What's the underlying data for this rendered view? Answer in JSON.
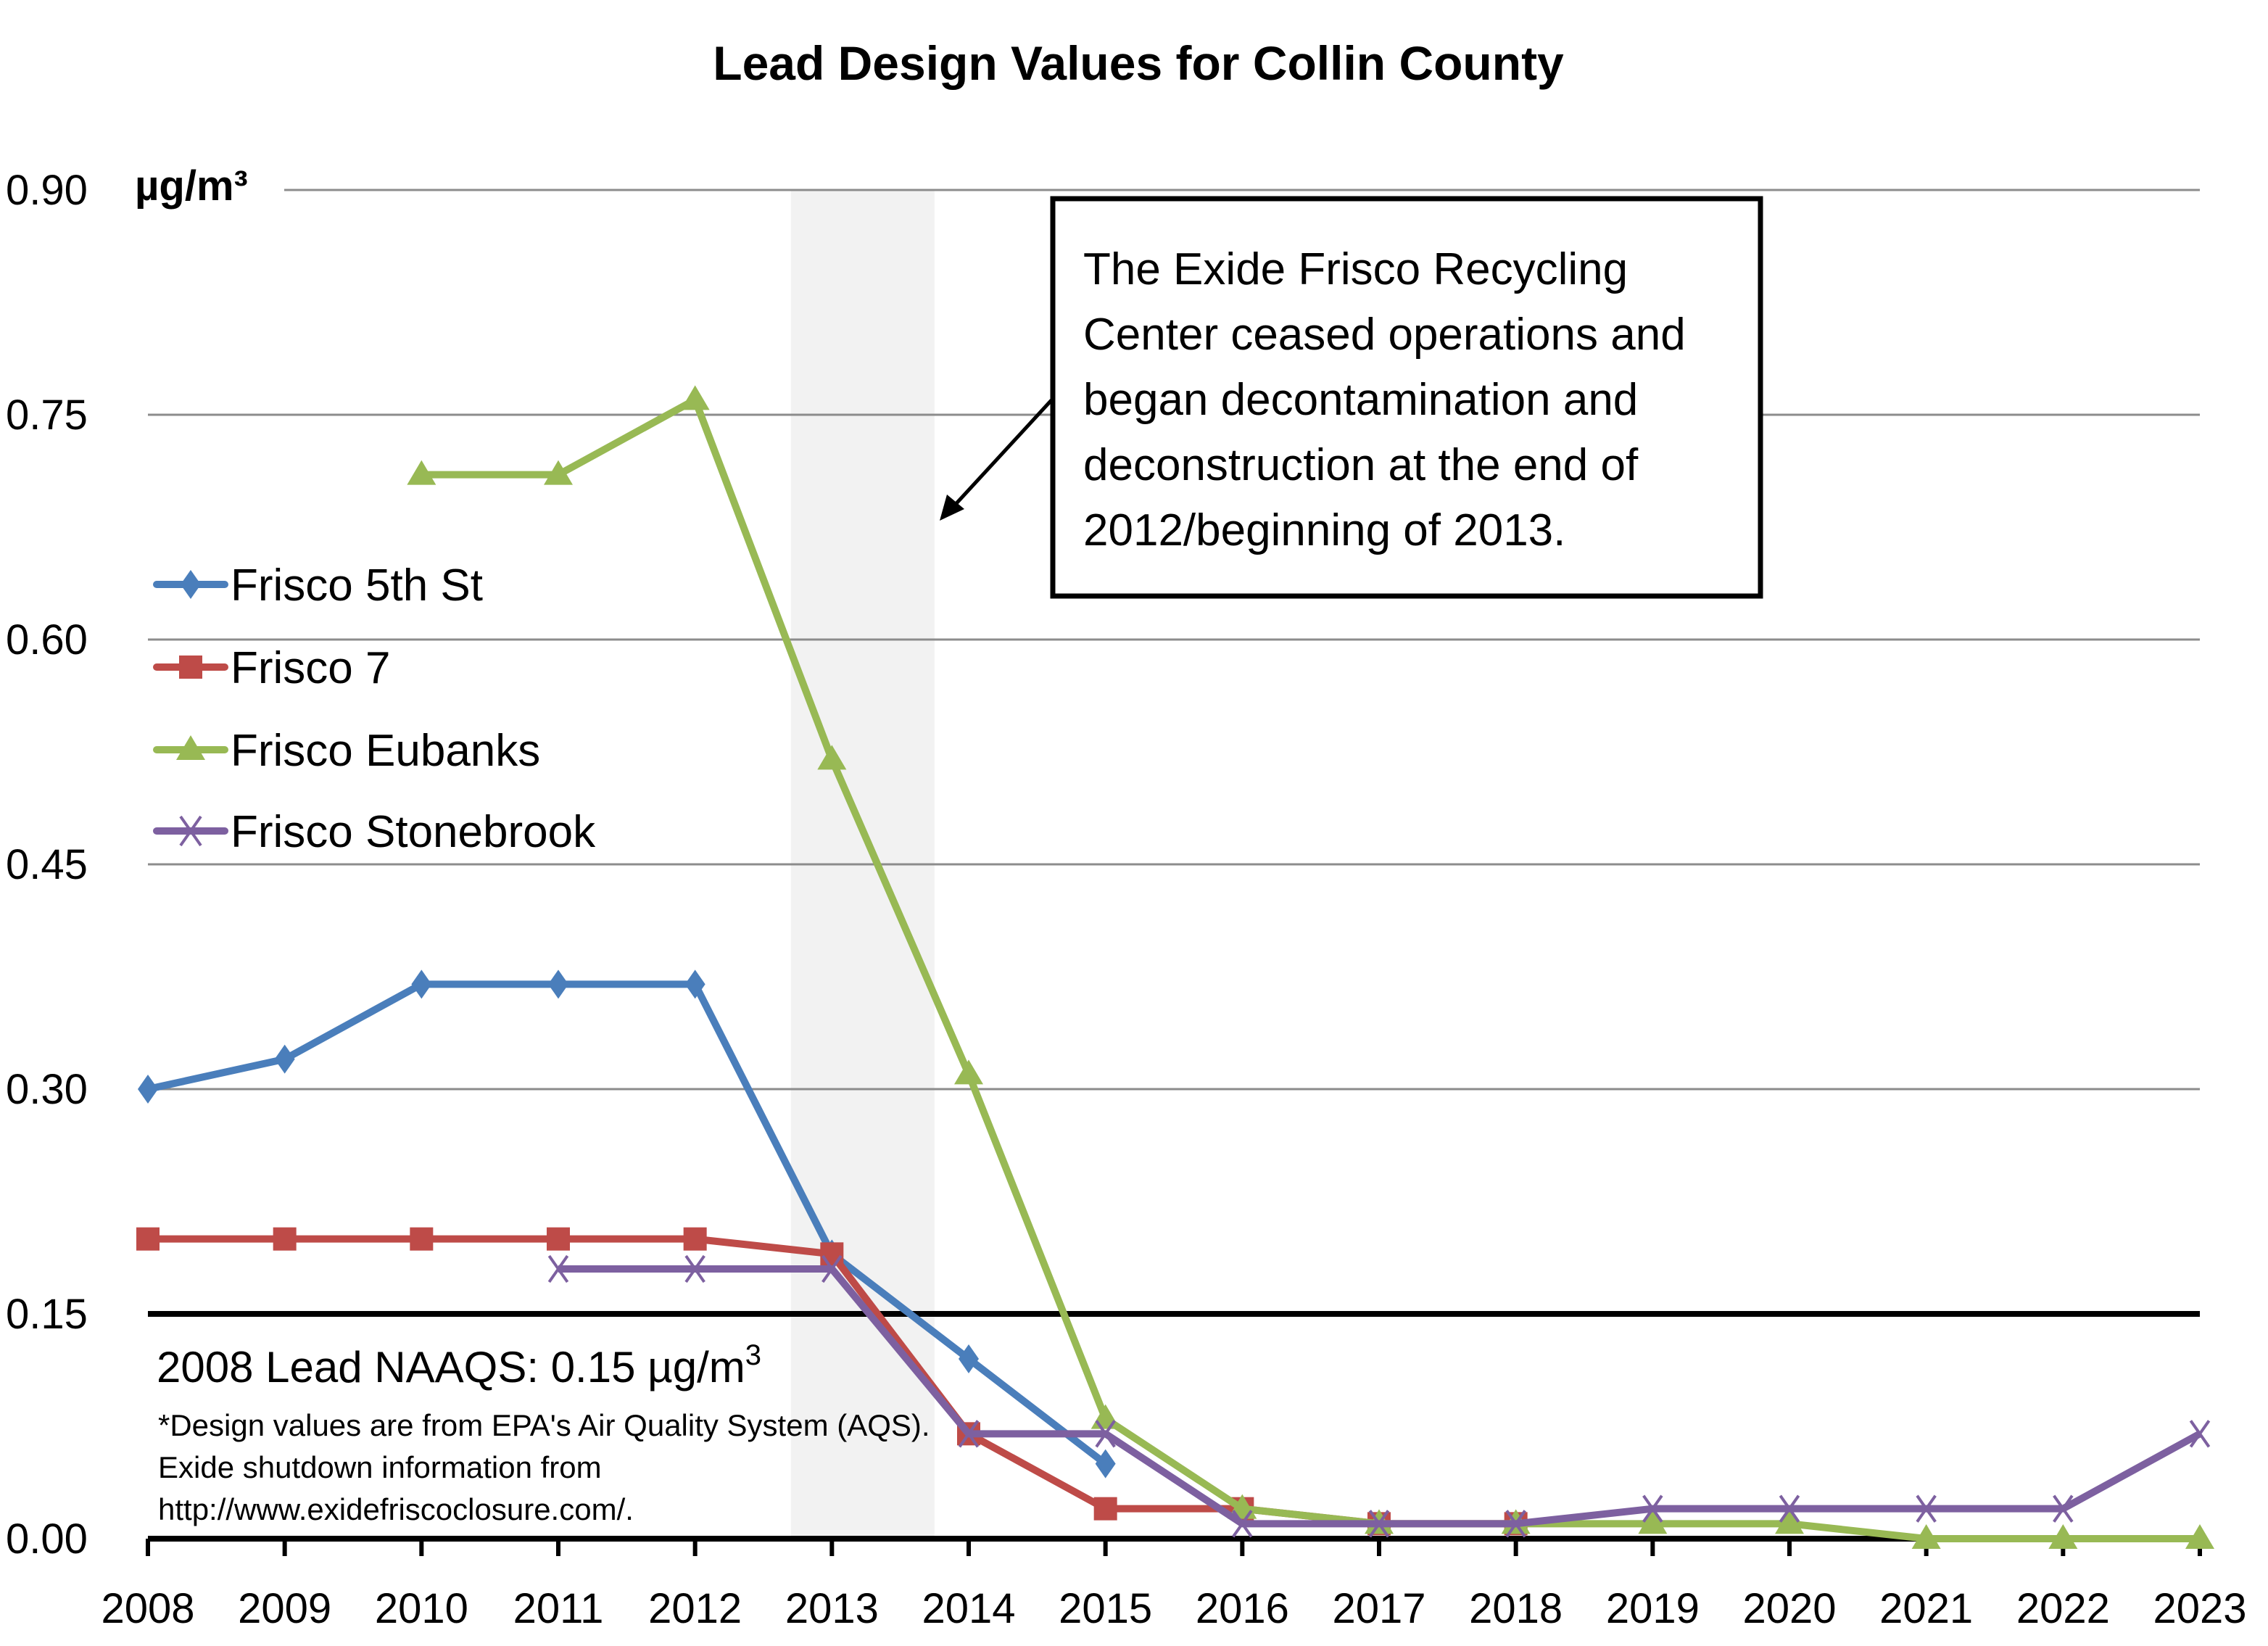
{
  "chart_data": {
    "type": "line",
    "title": "Lead Design Values for Collin County",
    "xlabel": "",
    "ylabel": "µg/m³",
    "ylim": [
      0,
      0.9
    ],
    "yticks": [
      "0.00",
      "0.15",
      "0.30",
      "0.45",
      "0.60",
      "0.75",
      "0.90"
    ],
    "ytick_values": [
      0,
      0.15,
      0.3,
      0.45,
      0.6,
      0.75,
      0.9
    ],
    "grid": true,
    "legend_position": "left-middle",
    "x": [
      "2008",
      "2009",
      "2010",
      "2011",
      "2012",
      "2013",
      "2014",
      "2015",
      "2016",
      "2017",
      "2018",
      "2019",
      "2020",
      "2021",
      "2022",
      "2023"
    ],
    "series": [
      {
        "name": "Frisco 5th St",
        "color": "#4a7ebb",
        "marker": "diamond",
        "values": [
          0.3,
          0.32,
          0.37,
          0.37,
          0.37,
          0.19,
          0.12,
          0.05,
          null,
          null,
          null,
          null,
          null,
          null,
          null,
          null
        ]
      },
      {
        "name": "Frisco 7",
        "color": "#be4b48",
        "marker": "square",
        "values": [
          0.2,
          0.2,
          0.2,
          0.2,
          0.2,
          0.19,
          0.07,
          0.02,
          0.02,
          0.01,
          0.01,
          null,
          null,
          null,
          null,
          null
        ]
      },
      {
        "name": "Frisco Eubanks",
        "color": "#98b954",
        "marker": "triangle",
        "values": [
          null,
          null,
          0.71,
          0.71,
          0.76,
          0.52,
          0.31,
          0.08,
          0.02,
          0.01,
          0.01,
          0.01,
          0.01,
          0.0,
          0.0,
          0.0
        ]
      },
      {
        "name": "Frisco Stonebrook",
        "color": "#7d60a0",
        "marker": "x",
        "values": [
          null,
          null,
          null,
          0.18,
          0.18,
          0.18,
          0.07,
          0.07,
          0.01,
          0.01,
          0.01,
          0.02,
          0.02,
          0.02,
          0.02,
          0.07
        ]
      }
    ],
    "reference_line": {
      "label": "2008 Lead NAAQS: 0.15 µg/m",
      "superscript": "3",
      "value": 0.15,
      "color": "#000000"
    },
    "shaded_region": {
      "from": 2012.7,
      "to": 2013.75,
      "color": "#f2f2f2"
    },
    "annotation": {
      "lines": [
        "The Exide Frisco Recycling",
        "Center ceased operations and",
        "began decontamination and",
        "deconstruction at the end of",
        "2012/beginning of 2013."
      ],
      "arrow_to_year": 2013.8,
      "arrow_to_value": 0.52
    },
    "footnote": [
      "*Design values are from EPA's Air Quality System (AQS).",
      "Exide shutdown information from",
      "http://www.exidefriscoclosure.com/."
    ]
  }
}
